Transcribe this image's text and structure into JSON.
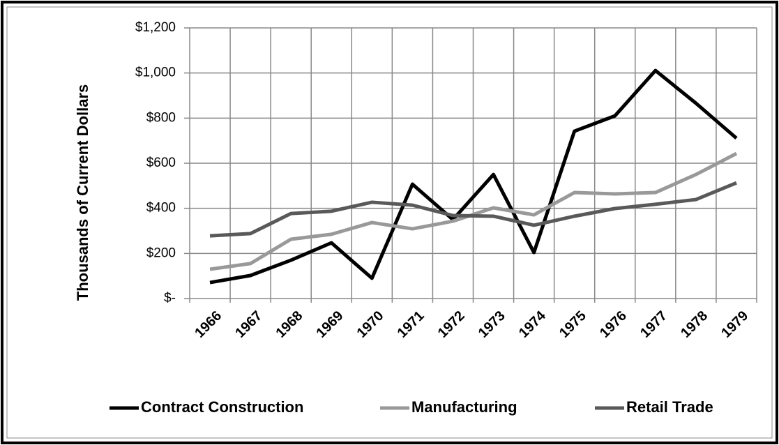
{
  "chart_data": {
    "type": "line",
    "y_label": "Thousands of Current Dollars",
    "categories": [
      "1966",
      "1967",
      "1968",
      "1969",
      "1970",
      "1971",
      "1972",
      "1973",
      "1974",
      "1975",
      "1976",
      "1977",
      "1978",
      "1979"
    ],
    "series": [
      {
        "name": "Contract Construction",
        "color": "#000000",
        "values": [
          71,
          102,
          170,
          247,
          90,
          507,
          350,
          550,
          204,
          742,
          810,
          1011,
          866,
          711
        ]
      },
      {
        "name": "Manufacturing",
        "color": "#999999",
        "values": [
          130,
          155,
          263,
          285,
          337,
          309,
          343,
          402,
          371,
          470,
          464,
          470,
          550,
          643
        ]
      },
      {
        "name": "Retail Trade",
        "color": "#595959",
        "values": [
          278,
          288,
          377,
          387,
          427,
          414,
          368,
          365,
          325,
          365,
          399,
          418,
          439,
          513
        ]
      }
    ],
    "ylim": [
      0,
      1200
    ],
    "yticks": [
      {
        "value": 0,
        "label": "$-"
      },
      {
        "value": 200,
        "label": "$200"
      },
      {
        "value": 400,
        "label": "$400"
      },
      {
        "value": 600,
        "label": "$600"
      },
      {
        "value": 800,
        "label": "$800"
      },
      {
        "value": 1000,
        "label": "$1,000"
      },
      {
        "value": 1200,
        "label": "$1,200"
      }
    ],
    "grid": true,
    "legend": "bottom"
  }
}
